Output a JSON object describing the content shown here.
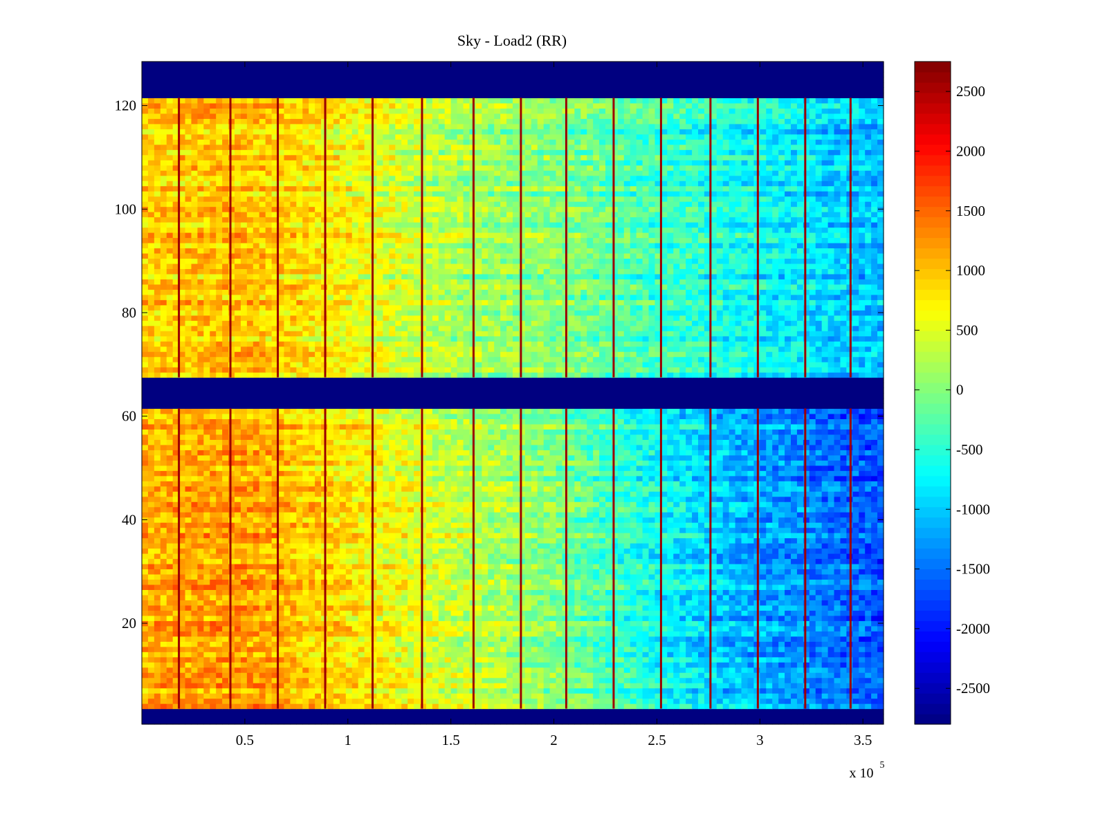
{
  "chart_data": {
    "type": "heatmap",
    "title": "Sky - Load2 (RR)",
    "xlabel": "",
    "ylabel": "",
    "x_multiplier_label": "x 10",
    "x_multiplier_exponent": "5",
    "xlim": [
      0,
      3.6
    ],
    "ylim": [
      0.5,
      128.5
    ],
    "x_ticks": [
      0.5,
      1,
      1.5,
      2,
      2.5,
      3,
      3.5
    ],
    "x_tick_labels": [
      "0.5",
      "1",
      "1.5",
      "2",
      "2.5",
      "3",
      "3.5"
    ],
    "y_ticks": [
      20,
      40,
      60,
      80,
      100,
      120
    ],
    "y_tick_labels": [
      "20",
      "40",
      "60",
      "80",
      "100",
      "120"
    ],
    "colormap": "jet",
    "clim": [
      -2800,
      2750
    ],
    "colorbar_ticks": [
      2500,
      2000,
      1500,
      1000,
      500,
      0,
      -500,
      -1000,
      -1500,
      -2000,
      -2500
    ],
    "colorbar_tick_labels": [
      "2500",
      "2000",
      "1500",
      "1000",
      "500",
      "0",
      "-500",
      "-1000",
      "-1500",
      "-2000",
      "-2500"
    ],
    "grid": false,
    "masked_rows": [
      [
        0.5,
        3.5
      ],
      [
        61.5,
        67.5
      ],
      [
        121.5,
        128.5
      ]
    ],
    "masked_value": -2800,
    "value_trend_x": [
      0.0,
      0.5,
      1.0,
      1.5,
      2.0,
      2.5,
      3.0,
      3.6
    ],
    "value_trend_lower_block": [
      1100,
      1200,
      800,
      350,
      0,
      -700,
      -1200,
      -1700
    ],
    "value_trend_upper_block": [
      900,
      1000,
      650,
      200,
      0,
      -400,
      -700,
      -1100
    ],
    "spike_x": [
      0.18,
      0.43,
      0.66,
      0.89,
      1.12,
      1.36,
      1.61,
      1.84,
      2.06,
      2.29,
      2.52,
      2.76,
      2.99,
      3.22,
      3.44
    ],
    "spike_value": 2600
  }
}
